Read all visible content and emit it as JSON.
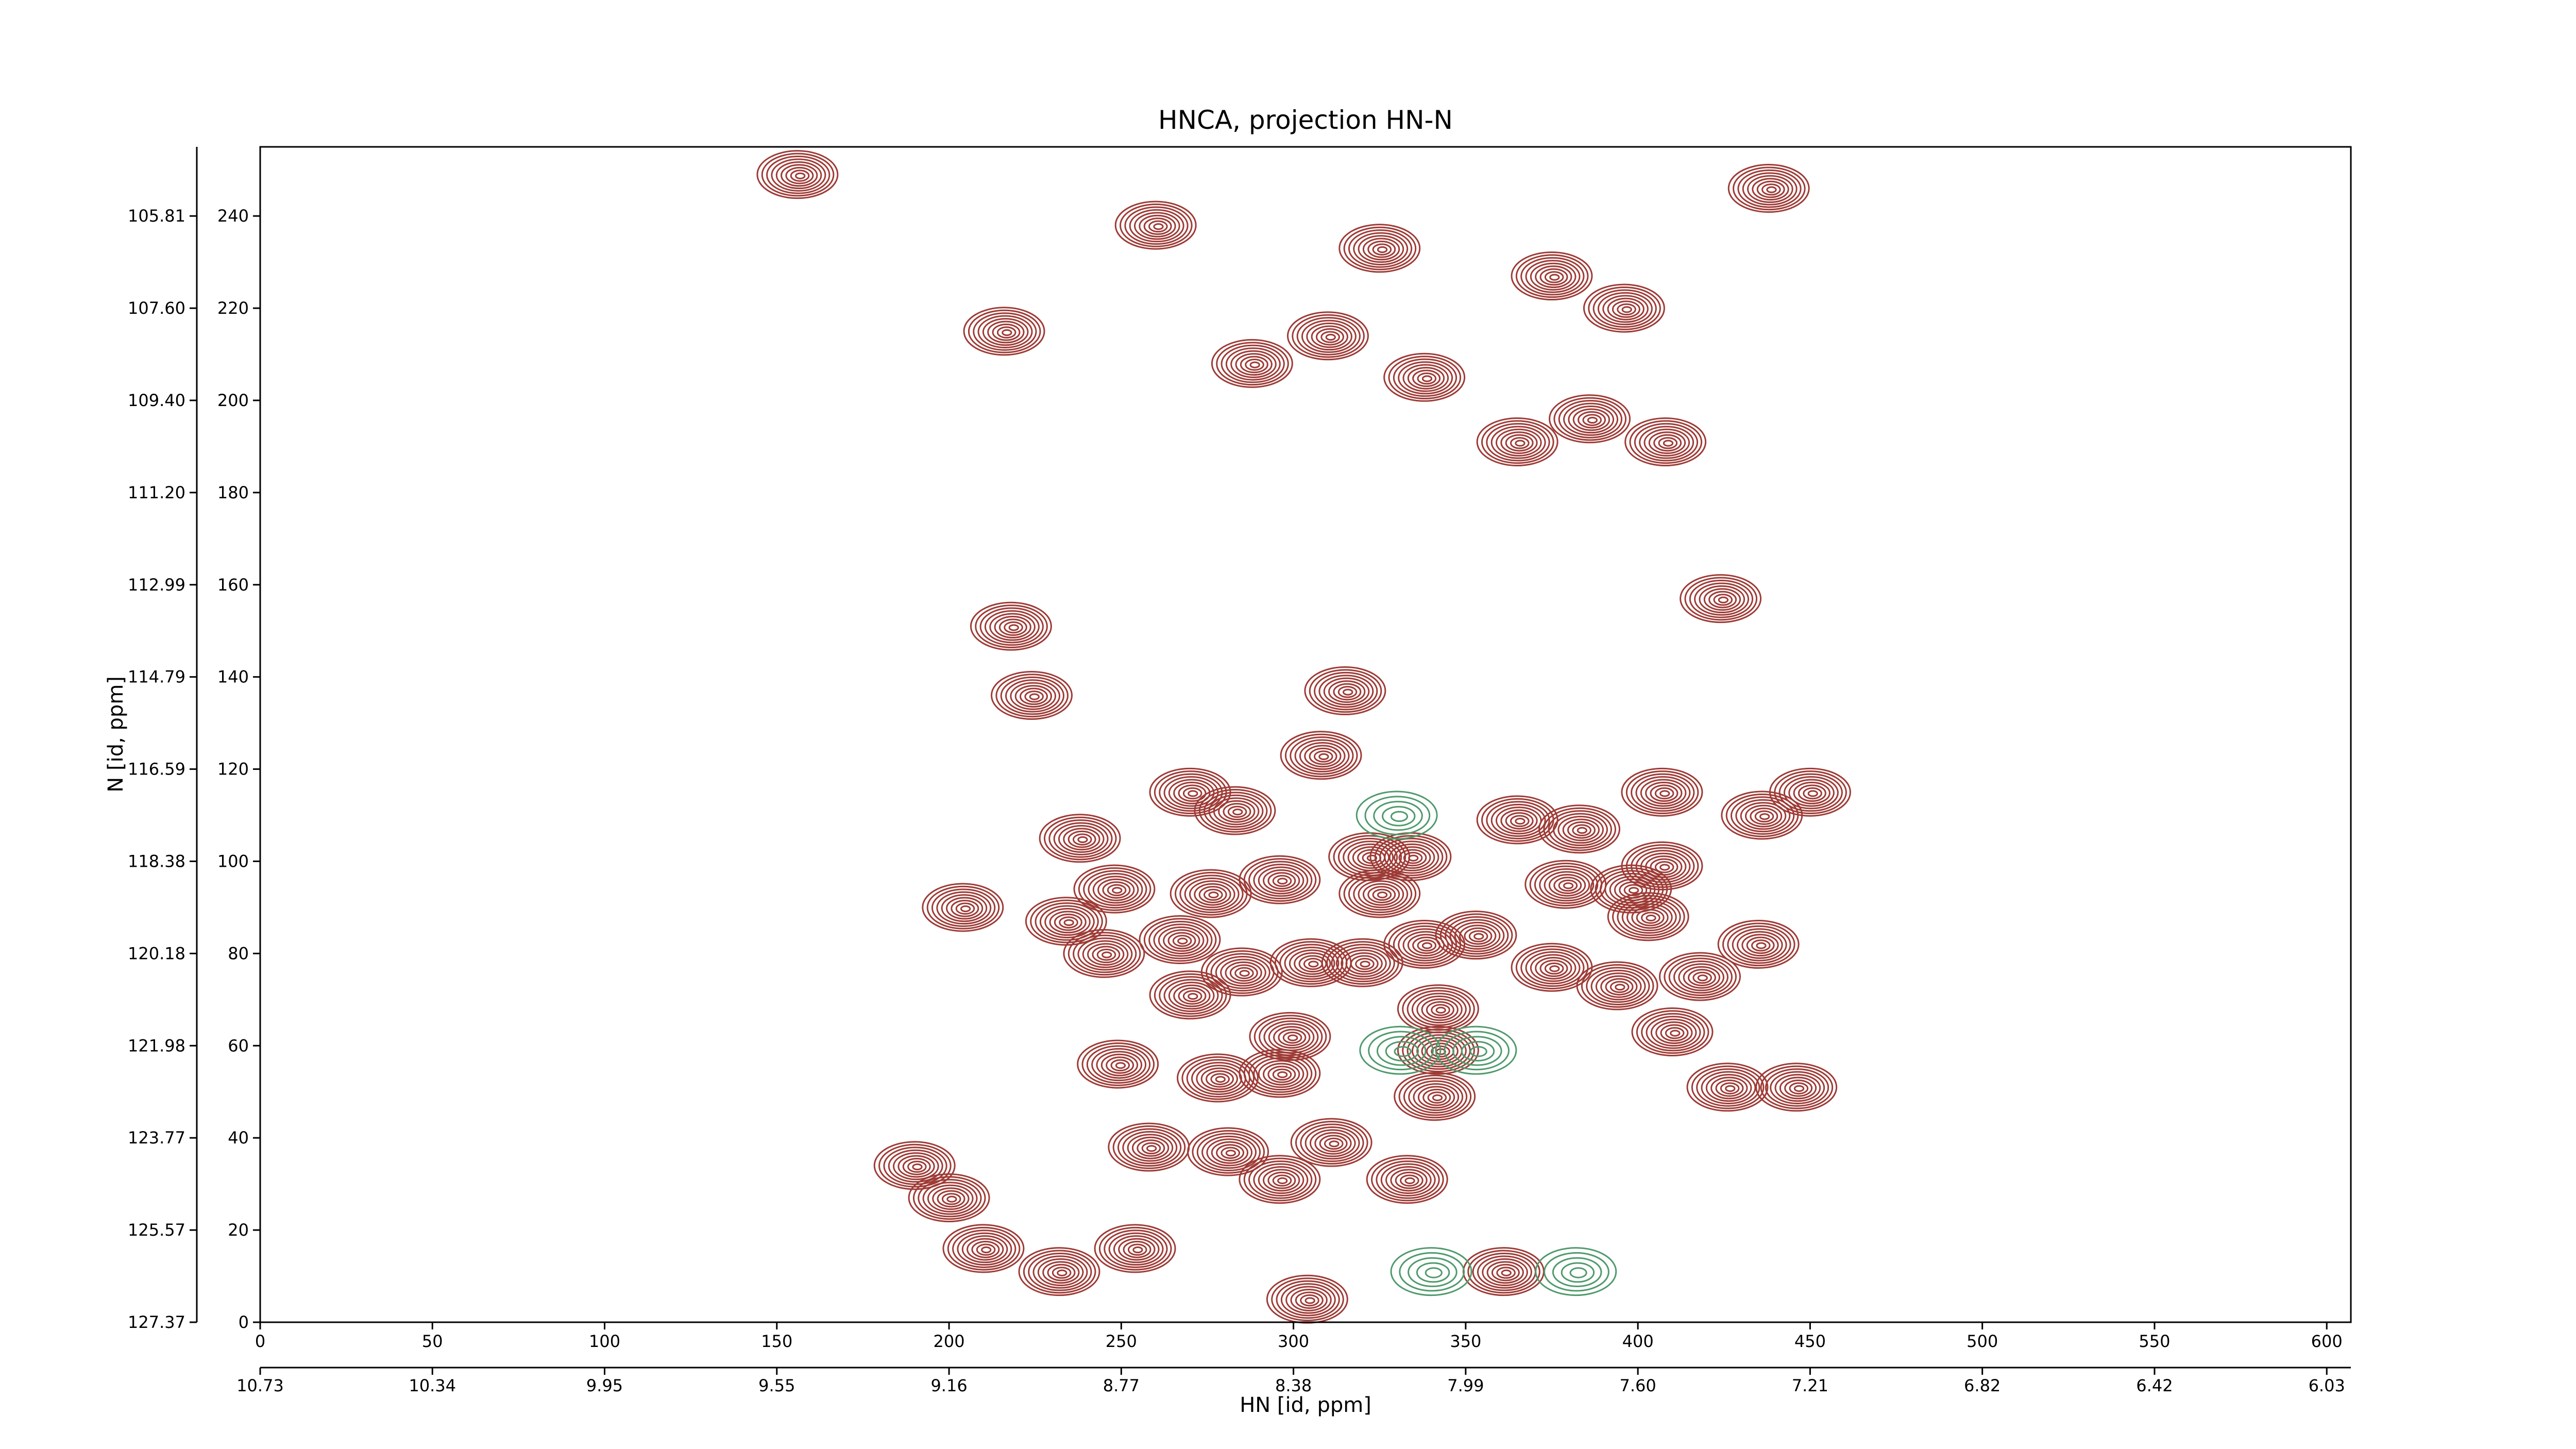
{
  "chart_data": {
    "type": "contour",
    "title": "HNCA, projection HN-N",
    "x_label": "HN [id, ppm]",
    "y_label": "N [id, ppm]",
    "xlim": [
      0,
      607
    ],
    "ylim": [
      0,
      255
    ],
    "xticks": [
      0,
      50,
      100,
      150,
      200,
      250,
      300,
      350,
      400,
      450,
      500,
      550,
      600
    ],
    "yticks": [
      0,
      20,
      40,
      60,
      80,
      100,
      120,
      140,
      160,
      180,
      200,
      220,
      240
    ],
    "x2ticks": [
      {
        "value": 0,
        "label": "10.73"
      },
      {
        "value": 50,
        "label": "10.34"
      },
      {
        "value": 100,
        "label": "9.95"
      },
      {
        "value": 150,
        "label": "9.55"
      },
      {
        "value": 200,
        "label": "9.16"
      },
      {
        "value": 250,
        "label": "8.77"
      },
      {
        "value": 300,
        "label": "8.38"
      },
      {
        "value": 350,
        "label": "7.99"
      },
      {
        "value": 400,
        "label": "7.60"
      },
      {
        "value": 450,
        "label": "7.21"
      },
      {
        "value": 500,
        "label": "6.82"
      },
      {
        "value": 550,
        "label": "6.42"
      },
      {
        "value": 600,
        "label": "6.03"
      }
    ],
    "y2ticks": [
      {
        "value": 0,
        "label": "127.37"
      },
      {
        "value": 20,
        "label": "125.57"
      },
      {
        "value": 40,
        "label": "123.77"
      },
      {
        "value": 60,
        "label": "121.98"
      },
      {
        "value": 80,
        "label": "120.18"
      },
      {
        "value": 100,
        "label": "118.38"
      },
      {
        "value": 120,
        "label": "116.59"
      },
      {
        "value": 140,
        "label": "114.79"
      },
      {
        "value": 160,
        "label": "112.99"
      },
      {
        "value": 180,
        "label": "111.20"
      },
      {
        "value": 200,
        "label": "109.40"
      },
      {
        "value": 220,
        "label": "107.60"
      },
      {
        "value": 240,
        "label": "105.81"
      }
    ],
    "series": [
      {
        "color": "#9e3b36",
        "x": [
          156,
          260,
          216,
          288,
          310,
          325,
          338,
          375,
          396,
          438,
          386,
          365,
          408,
          424,
          218,
          224,
          315,
          308,
          270,
          283,
          407,
          436,
          450,
          238,
          365,
          383,
          322,
          334,
          407,
          296,
          248,
          276,
          204,
          379,
          398,
          234,
          403,
          325,
          245,
          267,
          353,
          338,
          305,
          320,
          375,
          285,
          435,
          418,
          394,
          270,
          342,
          299,
          342,
          278,
          296,
          249,
          410,
          426,
          446,
          341,
          258,
          281,
          311,
          296,
          333,
          190,
          200,
          210,
          232,
          254,
          304,
          361
        ],
        "y": [
          249,
          238,
          215,
          208,
          214,
          233,
          205,
          227,
          220,
          246,
          196,
          191,
          191,
          157,
          151,
          136,
          137,
          123,
          115,
          111,
          115,
          110,
          115,
          105,
          109,
          107,
          101,
          101,
          99,
          96,
          94,
          93,
          90,
          95,
          94,
          87,
          88,
          93,
          80,
          83,
          84,
          82,
          78,
          78,
          77,
          76,
          82,
          75,
          73,
          71,
          68,
          62,
          59,
          53,
          54,
          56,
          63,
          51,
          51,
          49,
          38,
          37,
          39,
          31,
          31,
          34,
          27,
          16,
          11,
          16,
          5,
          11
        ]
      },
      {
        "color": "#4f9a6c",
        "x": [
          340,
          382,
          331,
          353,
          330
        ],
        "y": [
          11,
          11,
          59,
          59,
          110
        ]
      }
    ]
  }
}
